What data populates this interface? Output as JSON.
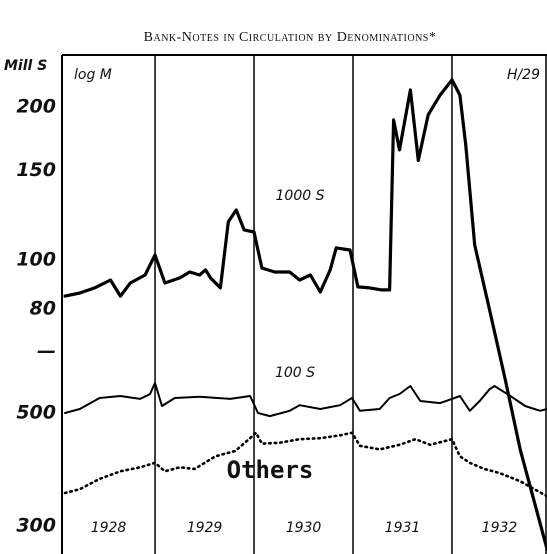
{
  "chart_data": {
    "type": "line",
    "title": "Bank-Notes in Circulation by Denominations*",
    "y_label": "Mill S",
    "annotations": [
      "log M",
      "H/29",
      "1000 S",
      "100 S",
      "Others"
    ],
    "log_scale": true,
    "xlim": [
      1928.06,
      1932.96
    ],
    "xticks": [
      1929,
      1930,
      1931,
      1932
    ],
    "categories": [
      "1928",
      "1929",
      "1930",
      "1931",
      "1932"
    ],
    "ylim": [
      26.4,
      253
    ],
    "yticks": [
      200,
      150,
      100,
      80,
      {
        "value": 66,
        "label": "—"
      }
    ],
    "y2lim": [
      264,
      2530
    ],
    "y2ticks": [
      500,
      300
    ],
    "series": [
      {
        "name": "1000 S",
        "color": "#000000",
        "style": "bold",
        "x": [
          1928.09,
          1928.24,
          1928.39,
          1928.55,
          1928.65,
          1928.75,
          1928.9,
          1929.0,
          1929.1,
          1929.25,
          1929.35,
          1929.45,
          1929.51,
          1929.56,
          1929.66,
          1929.74,
          1929.82,
          1929.9,
          1930.0,
          1930.08,
          1930.21,
          1930.36,
          1930.46,
          1930.57,
          1930.67,
          1930.77,
          1930.83,
          1930.97,
          1931.05,
          1931.17,
          1931.29,
          1931.37,
          1931.41,
          1931.47,
          1931.58,
          1931.66,
          1931.76,
          1931.88,
          1932.0,
          1932.08,
          1932.14,
          1932.23,
          1932.38,
          1932.54,
          1932.69,
          1932.84,
          1932.96
        ],
        "values": [
          84.9,
          86.1,
          88.1,
          91.3,
          84.9,
          90.1,
          93.4,
          102.3,
          90.1,
          92.2,
          94.7,
          93.4,
          95.6,
          92.2,
          88.1,
          118.8,
          125.4,
          114.6,
          113.5,
          96.4,
          94.7,
          94.7,
          91.3,
          93.4,
          86.5,
          95.6,
          105.6,
          104.6,
          88.5,
          88.1,
          87.3,
          87.3,
          188.6,
          164.6,
          216,
          157,
          193,
          211,
          226,
          211,
          168,
          107,
          79.7,
          58,
          42.3,
          33,
          27
        ]
      },
      {
        "name": "100 S",
        "color": "#000000",
        "style": "solid",
        "axis": "y2",
        "x": [
          1928.09,
          1928.24,
          1928.44,
          1928.65,
          1928.85,
          1928.95,
          1929.0,
          1929.07,
          1929.2,
          1929.45,
          1929.76,
          1929.96,
          1930.04,
          1930.16,
          1930.36,
          1930.46,
          1930.67,
          1930.87,
          1930.99,
          1931.07,
          1931.27,
          1931.37,
          1931.47,
          1931.58,
          1931.68,
          1931.88,
          1932.0,
          1932.08,
          1932.18,
          1932.28,
          1932.38,
          1932.43,
          1932.59,
          1932.74,
          1932.89,
          1932.96
        ],
        "values": [
          500,
          509,
          535,
          540,
          533,
          545,
          573,
          516,
          535,
          538,
          533,
          540,
          500,
          493,
          505,
          518,
          509,
          518,
          535,
          505,
          509,
          535,
          545,
          565,
          528,
          523,
          533,
          540,
          505,
          528,
          557,
          565,
          540,
          516,
          505,
          509
        ]
      },
      {
        "name": "Others",
        "color": "#000000",
        "style": "dotted",
        "axis": "y2",
        "x": [
          1928.09,
          1928.24,
          1928.44,
          1928.65,
          1928.85,
          1929.0,
          1929.1,
          1929.25,
          1929.4,
          1929.61,
          1929.81,
          1929.96,
          1930.02,
          1930.08,
          1930.26,
          1930.46,
          1930.67,
          1930.87,
          1930.99,
          1931.07,
          1931.27,
          1931.47,
          1931.63,
          1931.78,
          1932.0,
          1932.08,
          1932.18,
          1932.33,
          1932.48,
          1932.69,
          1932.96
        ],
        "values": [
          348,
          354,
          371,
          384,
          391,
          399,
          384,
          391,
          388,
          411,
          421,
          446,
          457,
          435,
          437,
          444,
          446,
          452,
          457,
          431,
          424,
          433,
          444,
          433,
          444,
          411,
          399,
          388,
          381,
          367,
          343
        ]
      }
    ]
  }
}
